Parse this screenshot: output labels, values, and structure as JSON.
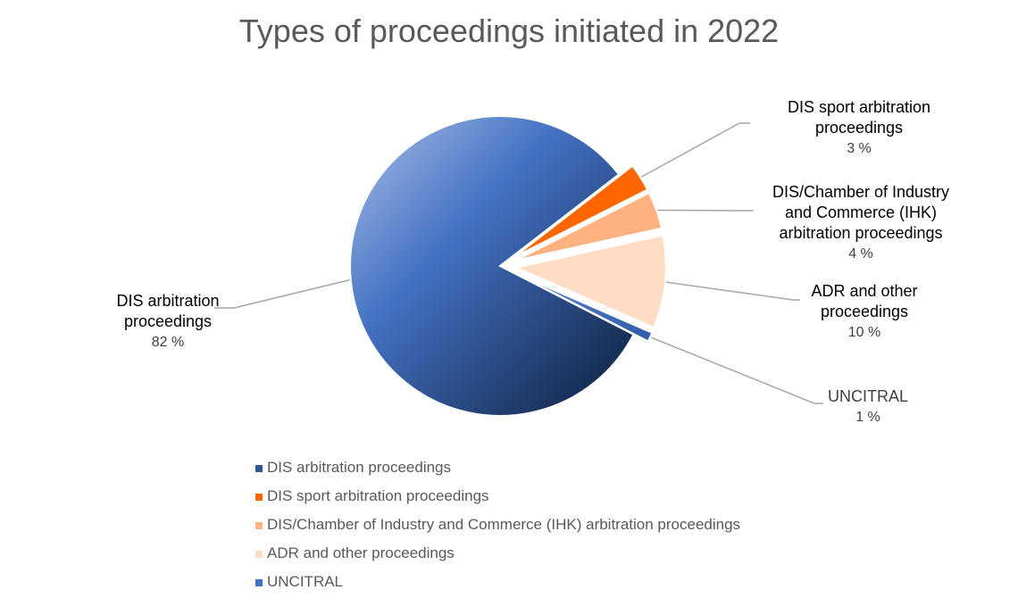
{
  "chart_data": {
    "type": "pie",
    "title": "Types of proceedings initiated in 2022",
    "slices": [
      {
        "label": "DIS arbitration proceedings",
        "label_lines": [
          "DIS arbitration",
          "proceedings"
        ],
        "value": 82,
        "pct_label": "82 %",
        "color": "#4472c4",
        "exploded": false
      },
      {
        "label": "DIS sport arbitration proceedings",
        "label_lines": [
          "DIS sport arbitration",
          "proceedings"
        ],
        "value": 3,
        "pct_label": "3 %",
        "color": "#ff6600",
        "exploded": true
      },
      {
        "label": "DIS/Chamber of Industry and Commerce (IHK) arbitration proceedings",
        "label_lines": [
          "DIS/Chamber of Industry",
          "and Commerce (IHK)",
          "arbitration proceedings"
        ],
        "value": 4,
        "pct_label": "4 %",
        "color": "#ffb27f",
        "exploded": true
      },
      {
        "label": "ADR and other proceedings",
        "label_lines": [
          "ADR and other",
          "proceedings"
        ],
        "value": 10,
        "pct_label": "10 %",
        "color": "#ffdcc4",
        "exploded": true
      },
      {
        "label": "UNCITRAL",
        "label_lines": [
          "UNCITRAL"
        ],
        "value": 1,
        "pct_label": "1 %",
        "color": "#4472c4",
        "exploded": true
      }
    ],
    "legend_position": "bottom"
  }
}
